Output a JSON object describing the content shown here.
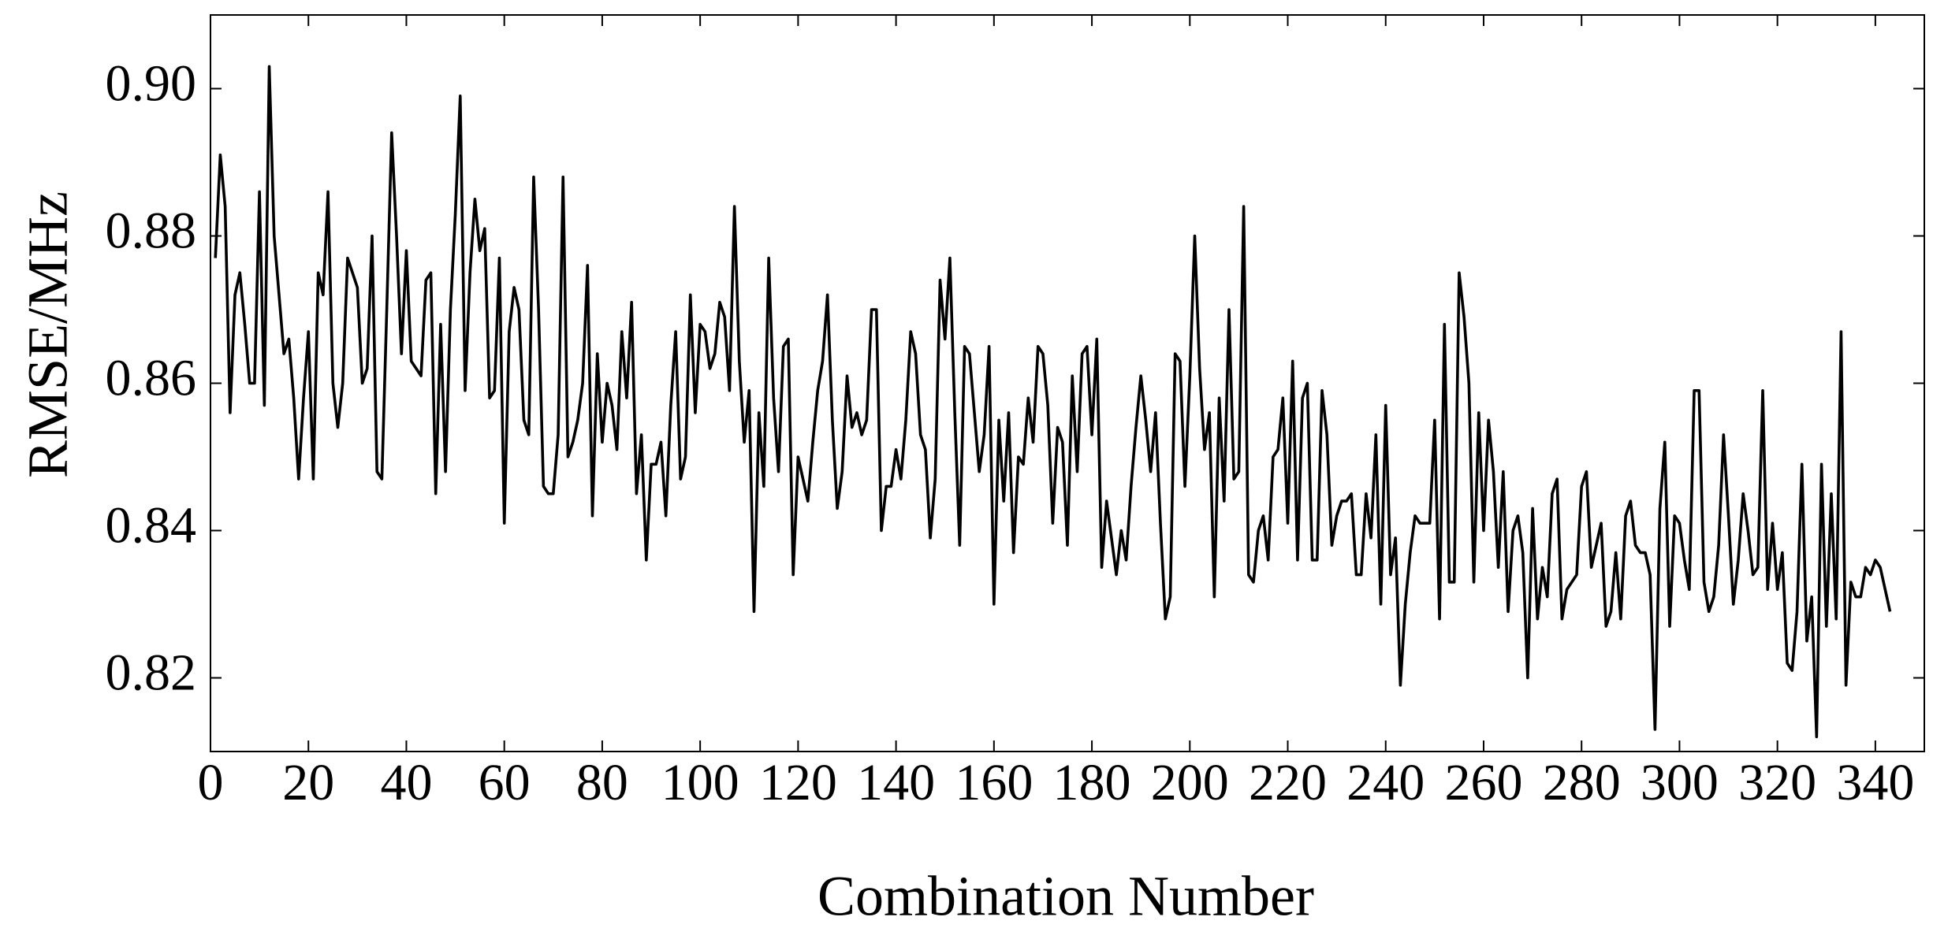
{
  "chart_data": {
    "type": "line",
    "x_label": "Combination Number",
    "y_label": "RMSE/MHz",
    "xlim": [
      0,
      350
    ],
    "ylim": [
      0.81,
      0.91
    ],
    "xticks": [
      0,
      20,
      40,
      60,
      80,
      100,
      120,
      140,
      160,
      180,
      200,
      220,
      240,
      260,
      280,
      300,
      320,
      340
    ],
    "yticks": [
      {
        "value": 0.82,
        "label": "0.82"
      },
      {
        "value": 0.84,
        "label": "0.84"
      },
      {
        "value": 0.86,
        "label": "0.86"
      },
      {
        "value": 0.88,
        "label": "0.88"
      },
      {
        "value": 0.9,
        "label": "0.90"
      }
    ],
    "x": [
      1,
      2,
      3,
      4,
      5,
      6,
      7,
      8,
      9,
      10,
      11,
      12,
      13,
      14,
      15,
      16,
      17,
      18,
      19,
      20,
      21,
      22,
      23,
      24,
      25,
      26,
      27,
      28,
      29,
      30,
      31,
      32,
      33,
      34,
      35,
      36,
      37,
      38,
      39,
      40,
      41,
      42,
      43,
      44,
      45,
      46,
      47,
      48,
      49,
      50,
      51,
      52,
      53,
      54,
      55,
      56,
      57,
      58,
      59,
      60,
      61,
      62,
      63,
      64,
      65,
      66,
      67,
      68,
      69,
      70,
      71,
      72,
      73,
      74,
      75,
      76,
      77,
      78,
      79,
      80,
      81,
      82,
      83,
      84,
      85,
      86,
      87,
      88,
      89,
      90,
      91,
      92,
      93,
      94,
      95,
      96,
      97,
      98,
      99,
      100,
      101,
      102,
      103,
      104,
      105,
      106,
      107,
      108,
      109,
      110,
      111,
      112,
      113,
      114,
      115,
      116,
      117,
      118,
      119,
      120,
      121,
      122,
      123,
      124,
      125,
      126,
      127,
      128,
      129,
      130,
      131,
      132,
      133,
      134,
      135,
      136,
      137,
      138,
      139,
      140,
      141,
      142,
      143,
      144,
      145,
      146,
      147,
      148,
      149,
      150,
      151,
      152,
      153,
      154,
      155,
      156,
      157,
      158,
      159,
      160,
      161,
      162,
      163,
      164,
      165,
      166,
      167,
      168,
      169,
      170,
      171,
      172,
      173,
      174,
      175,
      176,
      177,
      178,
      179,
      180,
      181,
      182,
      183,
      184,
      185,
      186,
      187,
      188,
      189,
      190,
      191,
      192,
      193,
      194,
      195,
      196,
      197,
      198,
      199,
      200,
      201,
      202,
      203,
      204,
      205,
      206,
      207,
      208,
      209,
      210,
      211,
      212,
      213,
      214,
      215,
      216,
      217,
      218,
      219,
      220,
      221,
      222,
      223,
      224,
      225,
      226,
      227,
      228,
      229,
      230,
      231,
      232,
      233,
      234,
      235,
      236,
      237,
      238,
      239,
      240,
      241,
      242,
      243,
      244,
      245,
      246,
      247,
      248,
      249,
      250,
      251,
      252,
      253,
      254,
      255,
      256,
      257,
      258,
      259,
      260,
      261,
      262,
      263,
      264,
      265,
      266,
      267,
      268,
      269,
      270,
      271,
      272,
      273,
      274,
      275,
      276,
      277,
      278,
      279,
      280,
      281,
      282,
      283,
      284,
      285,
      286,
      287,
      288,
      289,
      290,
      291,
      292,
      293,
      294,
      295,
      296,
      297,
      298,
      299,
      300,
      301,
      302,
      303,
      304,
      305,
      306,
      307,
      308,
      309,
      310,
      311,
      312,
      313,
      314,
      315,
      316,
      317,
      318,
      319,
      320,
      321,
      322,
      323,
      324,
      325,
      326,
      327,
      328,
      329,
      330,
      331,
      332,
      333,
      334,
      335,
      336,
      337,
      338,
      339,
      340,
      341,
      342,
      343
    ],
    "series": [
      {
        "color": "#000000",
        "values": [
          0.877,
          0.891,
          0.884,
          0.856,
          0.872,
          0.875,
          0.868,
          0.86,
          0.86,
          0.886,
          0.857,
          0.903,
          0.88,
          0.872,
          0.864,
          0.866,
          0.858,
          0.847,
          0.858,
          0.867,
          0.847,
          0.875,
          0.872,
          0.886,
          0.86,
          0.854,
          0.86,
          0.877,
          0.875,
          0.873,
          0.86,
          0.862,
          0.88,
          0.848,
          0.847,
          0.87,
          0.894,
          0.88,
          0.864,
          0.878,
          0.863,
          0.862,
          0.861,
          0.874,
          0.875,
          0.845,
          0.868,
          0.848,
          0.87,
          0.883,
          0.899,
          0.859,
          0.875,
          0.885,
          0.878,
          0.881,
          0.858,
          0.859,
          0.877,
          0.841,
          0.867,
          0.873,
          0.87,
          0.855,
          0.853,
          0.888,
          0.87,
          0.846,
          0.845,
          0.845,
          0.853,
          0.888,
          0.85,
          0.852,
          0.855,
          0.86,
          0.876,
          0.842,
          0.864,
          0.852,
          0.86,
          0.857,
          0.851,
          0.867,
          0.858,
          0.871,
          0.845,
          0.853,
          0.836,
          0.849,
          0.849,
          0.852,
          0.842,
          0.857,
          0.867,
          0.847,
          0.85,
          0.872,
          0.856,
          0.868,
          0.867,
          0.862,
          0.864,
          0.871,
          0.869,
          0.859,
          0.884,
          0.863,
          0.852,
          0.859,
          0.829,
          0.856,
          0.846,
          0.877,
          0.858,
          0.848,
          0.865,
          0.866,
          0.834,
          0.85,
          0.847,
          0.844,
          0.852,
          0.859,
          0.863,
          0.872,
          0.855,
          0.843,
          0.848,
          0.861,
          0.854,
          0.856,
          0.853,
          0.855,
          0.87,
          0.87,
          0.84,
          0.846,
          0.846,
          0.851,
          0.847,
          0.855,
          0.867,
          0.864,
          0.853,
          0.851,
          0.839,
          0.847,
          0.874,
          0.866,
          0.877,
          0.856,
          0.838,
          0.865,
          0.864,
          0.856,
          0.848,
          0.853,
          0.865,
          0.83,
          0.855,
          0.844,
          0.856,
          0.837,
          0.85,
          0.849,
          0.858,
          0.852,
          0.865,
          0.864,
          0.857,
          0.841,
          0.854,
          0.852,
          0.838,
          0.861,
          0.848,
          0.864,
          0.865,
          0.853,
          0.866,
          0.835,
          0.844,
          0.839,
          0.834,
          0.84,
          0.836,
          0.846,
          0.854,
          0.861,
          0.855,
          0.848,
          0.856,
          0.841,
          0.828,
          0.831,
          0.864,
          0.863,
          0.846,
          0.861,
          0.88,
          0.862,
          0.851,
          0.856,
          0.831,
          0.858,
          0.844,
          0.87,
          0.847,
          0.848,
          0.884,
          0.834,
          0.833,
          0.84,
          0.842,
          0.836,
          0.85,
          0.851,
          0.858,
          0.841,
          0.863,
          0.836,
          0.858,
          0.86,
          0.836,
          0.836,
          0.859,
          0.853,
          0.838,
          0.842,
          0.844,
          0.844,
          0.845,
          0.834,
          0.834,
          0.845,
          0.839,
          0.853,
          0.83,
          0.857,
          0.834,
          0.839,
          0.819,
          0.83,
          0.837,
          0.842,
          0.841,
          0.841,
          0.841,
          0.855,
          0.828,
          0.868,
          0.833,
          0.833,
          0.875,
          0.869,
          0.86,
          0.833,
          0.856,
          0.84,
          0.855,
          0.848,
          0.835,
          0.848,
          0.829,
          0.84,
          0.842,
          0.837,
          0.82,
          0.843,
          0.828,
          0.835,
          0.831,
          0.845,
          0.847,
          0.828,
          0.832,
          0.833,
          0.834,
          0.846,
          0.848,
          0.835,
          0.838,
          0.841,
          0.827,
          0.829,
          0.837,
          0.828,
          0.842,
          0.844,
          0.838,
          0.837,
          0.837,
          0.834,
          0.813,
          0.843,
          0.852,
          0.827,
          0.842,
          0.841,
          0.836,
          0.832,
          0.859,
          0.859,
          0.833,
          0.829,
          0.831,
          0.838,
          0.853,
          0.842,
          0.83,
          0.836,
          0.845,
          0.84,
          0.834,
          0.835,
          0.859,
          0.832,
          0.841,
          0.832,
          0.837,
          0.822,
          0.821,
          0.829,
          0.849,
          0.825,
          0.831,
          0.812,
          0.849,
          0.827,
          0.845,
          0.828,
          0.867,
          0.819,
          0.833,
          0.831,
          0.831,
          0.835,
          0.834,
          0.836,
          0.835,
          0.832,
          0.829
        ]
      }
    ]
  }
}
